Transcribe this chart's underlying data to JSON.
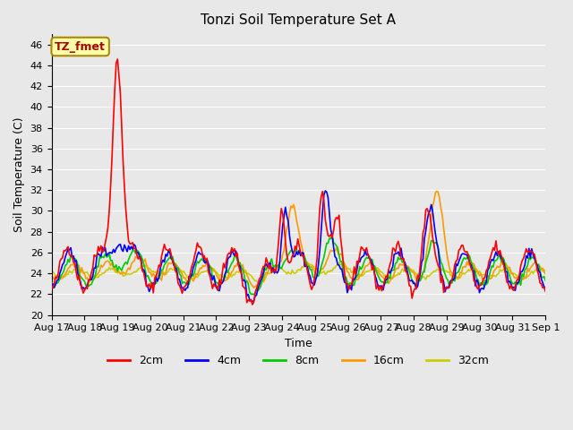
{
  "title": "Tonzi Soil Temperature Set A",
  "xlabel": "Time",
  "ylabel": "Soil Temperature (C)",
  "ylim": [
    20,
    47
  ],
  "yticks": [
    20,
    22,
    24,
    26,
    28,
    30,
    32,
    34,
    36,
    38,
    40,
    42,
    44,
    46
  ],
  "colors": {
    "2cm": "#ff0000",
    "4cm": "#0000ff",
    "8cm": "#00cc00",
    "16cm": "#ff9900",
    "32cm": "#cccc00"
  },
  "legend_labels": [
    "2cm",
    "4cm",
    "8cm",
    "16cm",
    "32cm"
  ],
  "annotation_text": "TZ_fmet",
  "annotation_bg": "#ffffaa",
  "annotation_border": "#aa8800",
  "background_color": "#e8e8e8",
  "plot_bg": "#e8e8e8",
  "grid_color": "#ffffff",
  "x_tick_labels": [
    "Aug 17",
    "Aug 18",
    "Aug 19",
    "Aug 20",
    "Aug 21",
    "Aug 22",
    "Aug 23",
    "Aug 24",
    "Aug 25",
    "Aug 26",
    "Aug 27",
    "Aug 28",
    "Aug 29",
    "Aug 30",
    "Aug 31",
    "Sep 1"
  ],
  "n_days": 15,
  "pts_per_day": 24,
  "line_width": 1.2
}
